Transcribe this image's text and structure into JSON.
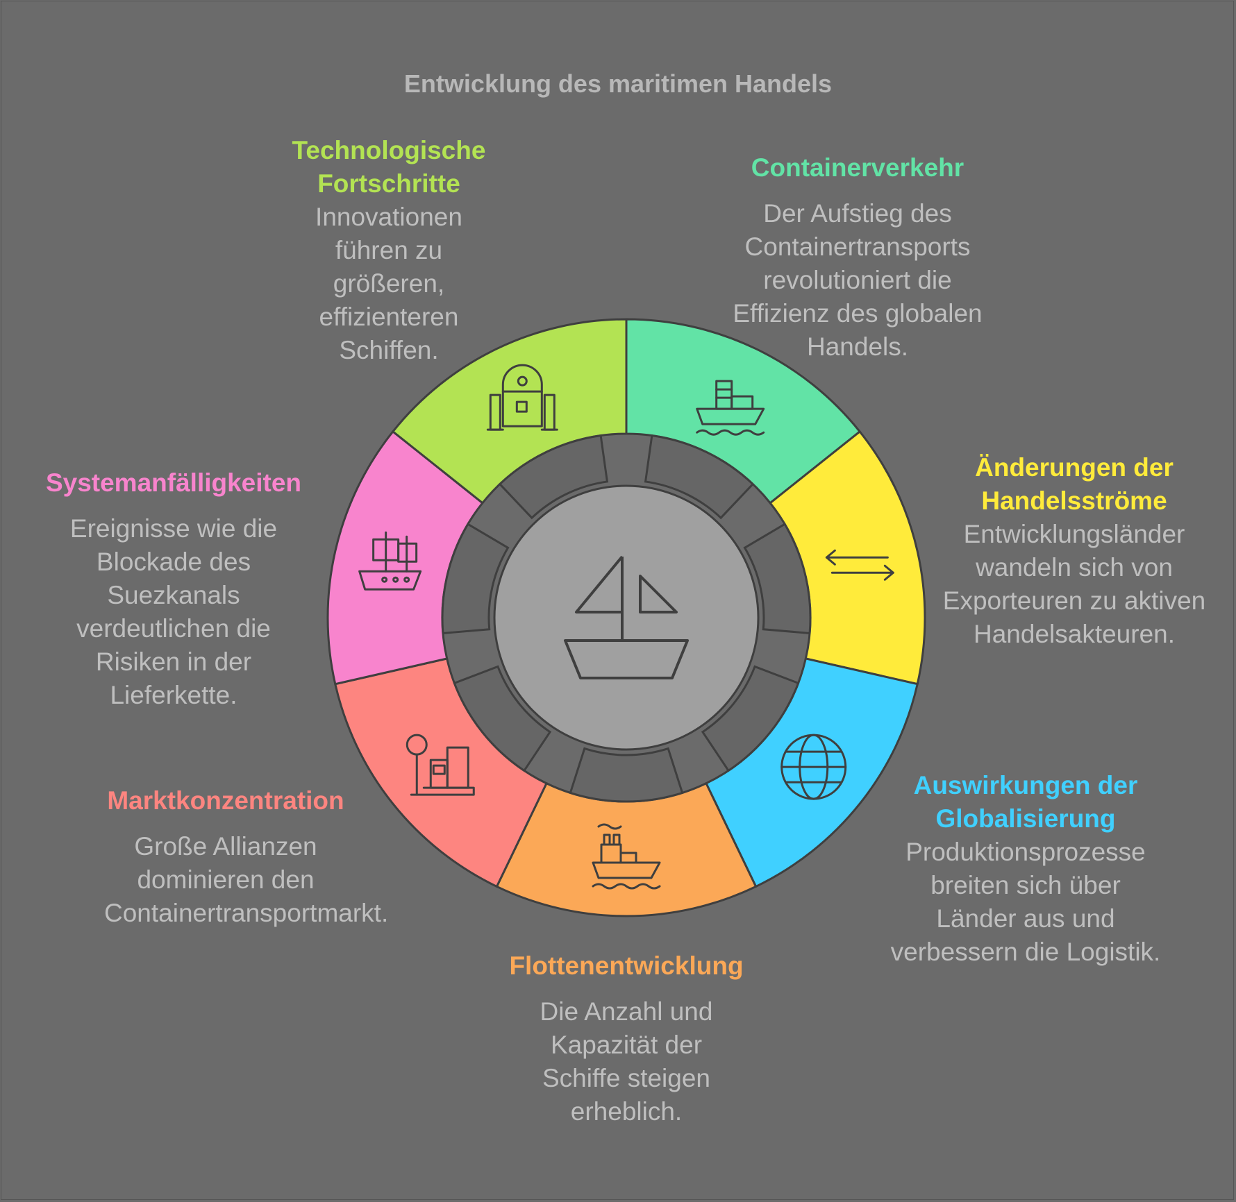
{
  "title": "Entwicklung des maritimen Handels",
  "center": {
    "icon": "sailboat-icon"
  },
  "segments": [
    {
      "key": "tech",
      "heading": "Technologische Fortschritte",
      "text": "Innovationen führen zu größeren, effizienteren Schiffen.",
      "color": "#b3e353",
      "icon": "robot-icon"
    },
    {
      "key": "container",
      "heading": "Containerverkehr",
      "text": "Der Aufstieg des Containertransports revolutioniert die Effizienz des globalen Handels.",
      "color": "#62e3a6",
      "icon": "cargo-ship-icon"
    },
    {
      "key": "flows",
      "heading": "Änderungen der Handelsströme",
      "text": "Entwicklungsländer wandeln sich von Exporteuren zu aktiven Handelsakteuren.",
      "color": "#ffeb3b",
      "icon": "exchange-arrows-icon"
    },
    {
      "key": "global",
      "heading": "Auswirkungen der Globalisierung",
      "text": "Produktionsprozesse breiten sich über Länder aus und verbessern die Logistik.",
      "color": "#40d0ff",
      "icon": "globe-icon"
    },
    {
      "key": "fleet",
      "heading": "Flottenentwicklung",
      "text": "Die Anzahl und Kapazität der Schiffe steigen erheblich.",
      "color": "#fba857",
      "icon": "tugboat-icon"
    },
    {
      "key": "market",
      "heading": "Marktkonzentration",
      "text": "Große Allianzen dominieren den Containertransportmarkt.",
      "color": "#fd8580",
      "icon": "scale-boxes-icon"
    },
    {
      "key": "vuln",
      "heading": "Systemanfälligkeiten",
      "text": "Ereignisse wie die Blockade des Suezkanals verdeutlichen die Risiken in der Lieferkette.",
      "color": "#f884cd",
      "icon": "galleon-icon"
    }
  ]
}
